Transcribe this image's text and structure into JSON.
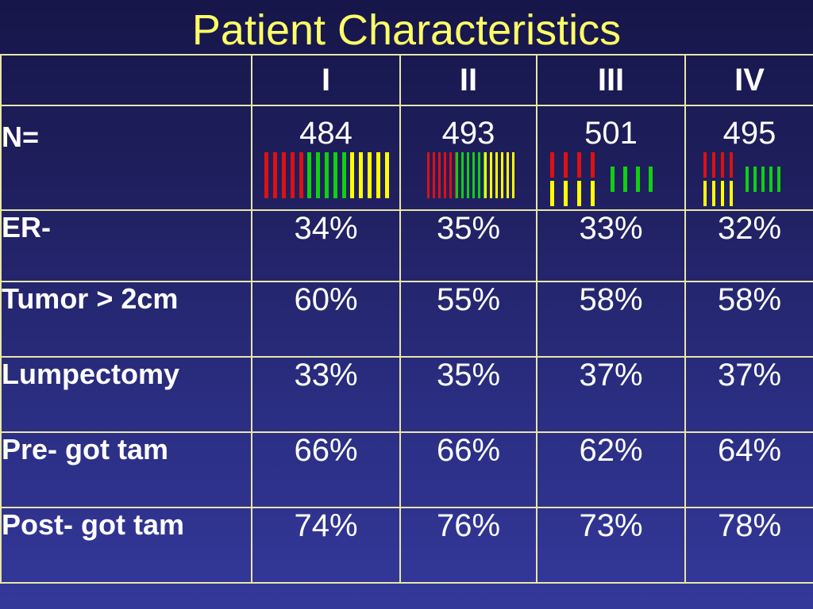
{
  "title": "Patient Characteristics",
  "columns": [
    "",
    "I",
    "II",
    "III",
    "IV"
  ],
  "rows": [
    {
      "label": "N=",
      "values": [
        "484",
        "493",
        "501",
        "495"
      ]
    },
    {
      "label": "ER-",
      "values": [
        "34%",
        "35%",
        "33%",
        "32%"
      ]
    },
    {
      "label": "Tumor > 2cm",
      "values": [
        "60%",
        "55%",
        "58%",
        "58%"
      ]
    },
    {
      "label": "Lumpectomy",
      "values": [
        "33%",
        "35%",
        "37%",
        "37%"
      ]
    },
    {
      "label": "Pre- got tam",
      "values": [
        "66%",
        "66%",
        "62%",
        "64%"
      ]
    },
    {
      "label": "Post- got tam",
      "values": [
        "74%",
        "76%",
        "73%",
        "78%"
      ]
    }
  ],
  "colors": {
    "title": "#ffff66",
    "label": "#ffff66",
    "border": "#e8e6a8",
    "bar_red": "#e01010",
    "bar_green": "#10d010",
    "bar_yellow": "#ffff00"
  },
  "bar_icons": [
    {
      "name": "arm-I-bars",
      "groups": [
        {
          "color": "red",
          "count": 5
        },
        {
          "color": "green",
          "count": 5
        },
        {
          "color": "yellow",
          "count": 5
        }
      ]
    },
    {
      "name": "arm-II-bars",
      "groups": [
        {
          "color": "red",
          "count": 6
        },
        {
          "color": "green",
          "count": 6
        },
        {
          "color": "yellow",
          "count": 6
        }
      ]
    },
    {
      "name": "arm-III-bars",
      "groups": [
        {
          "color": "red",
          "count": 4
        },
        {
          "color": "yellow",
          "count": 4
        },
        {
          "color": "green",
          "count": 4
        }
      ]
    },
    {
      "name": "arm-IV-bars",
      "groups": [
        {
          "color": "red",
          "count": 4
        },
        {
          "color": "yellow",
          "count": 4
        },
        {
          "color": "green",
          "count": 5
        }
      ]
    }
  ]
}
